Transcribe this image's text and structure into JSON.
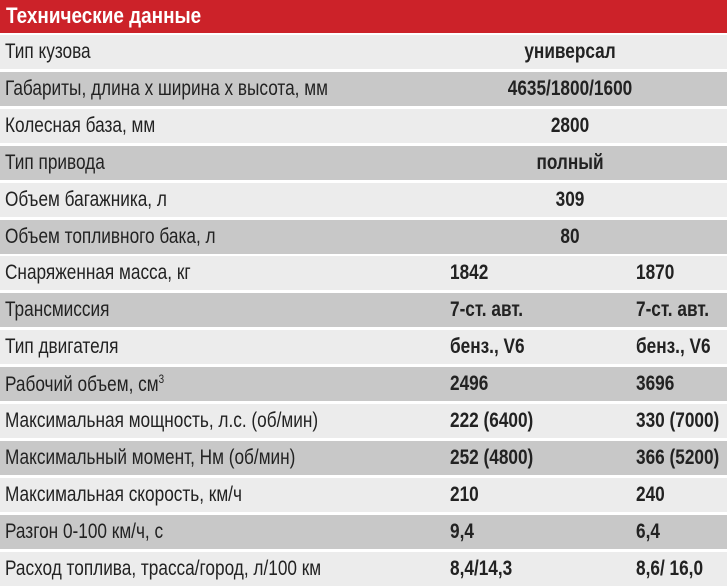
{
  "title": "Технические данные",
  "colors": {
    "header": "#cc2229",
    "row_light": "#ececec",
    "row_dark": "#c8c8c8"
  },
  "rows": [
    {
      "label": "Тип кузова",
      "value": "универсал"
    },
    {
      "label": "Габариты, длина х ширина х высота, мм",
      "value": "4635/1800/1600"
    },
    {
      "label": "Колесная база, мм",
      "value": "2800"
    },
    {
      "label": "Тип привода",
      "value": "полный"
    },
    {
      "label": "Объем багажника, л",
      "value": "309"
    },
    {
      "label": "Объем топливного бака, л",
      "value": "80"
    },
    {
      "label": "Снаряженная масса, кг",
      "values": [
        "1842",
        "1870"
      ]
    },
    {
      "label": "Трансмиссия",
      "values": [
        "7-ст. авт.",
        "7-ст. авт."
      ]
    },
    {
      "label": "Тип двигателя",
      "values": [
        "бенз., V6",
        "бенз., V6"
      ]
    },
    {
      "label": "Рабочий объем, см",
      "sup": "3",
      "values": [
        "2496",
        "3696"
      ]
    },
    {
      "label": "Максимальная мощность, л.с. (об/мин)",
      "values": [
        "222 (6400)",
        "330 (7000)"
      ]
    },
    {
      "label": "Максимальный момент, Нм (об/мин)",
      "values": [
        "252 (4800)",
        "366 (5200)"
      ]
    },
    {
      "label": "Максимальная скорость, км/ч",
      "values": [
        "210",
        "240"
      ]
    },
    {
      "label": "Разгон 0-100 км/ч, с",
      "values": [
        "9,4",
        "6,4"
      ]
    },
    {
      "label": "Расход топлива, трасса/город, л/100 км",
      "values": [
        "8,4/14,3",
        "8,6/ 16,0"
      ]
    }
  ]
}
